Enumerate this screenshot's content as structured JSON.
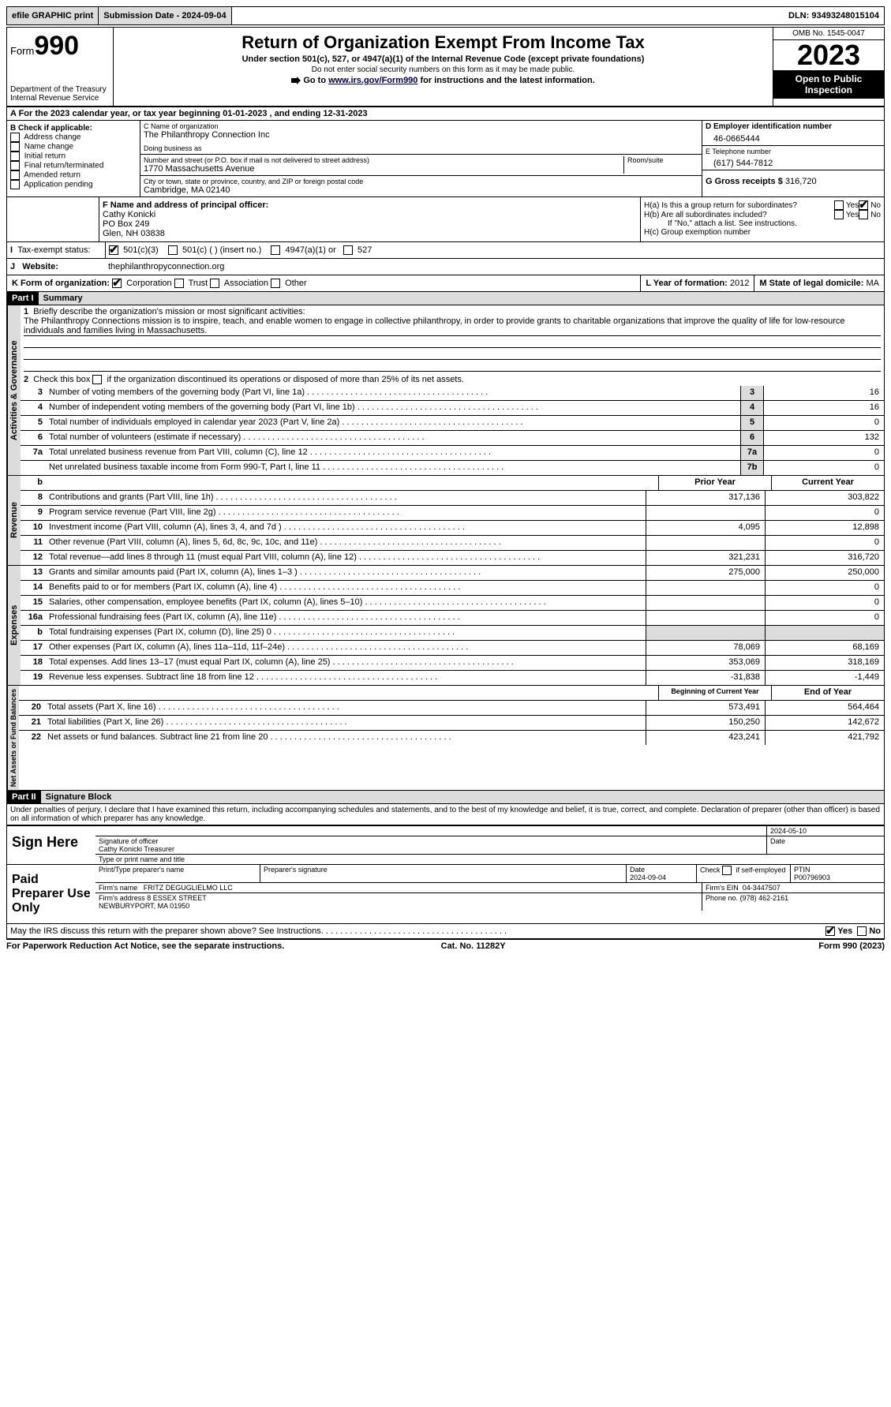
{
  "topbar": {
    "efile": "efile GRAPHIC print",
    "submission": "Submission Date - 2024-09-04",
    "dln": "DLN: 93493248015104"
  },
  "header": {
    "form_prefix": "Form",
    "form_num": "990",
    "title": "Return of Organization Exempt From Income Tax",
    "subtitle": "Under section 501(c), 527, or 4947(a)(1) of the Internal Revenue Code (except private foundations)",
    "warn": "Do not enter social security numbers on this form as it may be made public.",
    "goto_pre": "Go to ",
    "goto_link": "www.irs.gov/Form990",
    "goto_post": " for instructions and the latest information.",
    "dept": "Department of the Treasury\nInternal Revenue Service",
    "omb": "OMB No. 1545-0047",
    "year": "2023",
    "inspect": "Open to Public Inspection"
  },
  "row_a": "A For the 2023 calendar year, or tax year beginning 01-01-2023   , and ending 12-31-2023",
  "box_b": {
    "label": "B Check if applicable:",
    "opts": [
      "Address change",
      "Name change",
      "Initial return",
      "Final return/terminated",
      "Amended return",
      "Application pending"
    ]
  },
  "box_c": {
    "name_lbl": "C Name of organization",
    "name": "The Philanthropy Connection Inc",
    "dba_lbl": "Doing business as",
    "dba": "",
    "street_lbl": "Number and street (or P.O. box if mail is not delivered to street address)",
    "street": "1770 Massachusetts Avenue",
    "room_lbl": "Room/suite",
    "city_lbl": "City or town, state or province, country, and ZIP or foreign postal code",
    "city": "Cambridge, MA  02140"
  },
  "box_d": {
    "ein_lbl": "D Employer identification number",
    "ein": "46-0665444",
    "phone_lbl": "E Telephone number",
    "phone": "(617) 544-7812",
    "gross_lbl": "G Gross receipts $",
    "gross": "316,720"
  },
  "box_f": {
    "lbl": "F  Name and address of principal officer:",
    "name": "Cathy Konicki",
    "addr1": "PO Box 249",
    "addr2": "Glen, NH  03838"
  },
  "box_h": {
    "ha": "H(a)  Is this a group return for subordinates?",
    "hb": "H(b)  Are all subordinates included?",
    "hb_note": "If \"No,\" attach a list. See instructions.",
    "hc": "H(c)  Group exemption number ",
    "yes": "Yes",
    "no": "No"
  },
  "row_i": {
    "lbl": "Tax-exempt status:",
    "opt1": "501(c)(3)",
    "opt2": "501(c) (  ) (insert no.)",
    "opt3": "4947(a)(1) or",
    "opt4": "527"
  },
  "row_j": {
    "lbl": "Website:",
    "val": "thephilanthropyconnection.org"
  },
  "row_k": {
    "lbl": "K Form of organization:",
    "o1": "Corporation",
    "o2": "Trust",
    "o3": "Association",
    "o4": "Other"
  },
  "row_l": {
    "lbl": "L Year of formation:",
    "val": "2012"
  },
  "row_m": {
    "lbl": "M State of legal domicile:",
    "val": "MA"
  },
  "part1": {
    "hdr": "Part I",
    "title": "Summary",
    "q1_lbl": "Briefly describe the organization's mission or most significant activities:",
    "q1_txt": "The Philanthropy Connections mission is to inspire, teach, and enable women to engage in collective philanthropy, in order to provide grants to charitable organizations that improve the quality of life for low-resource individuals and families living in Massachusetts.",
    "q2": "Check this box      if the organization discontinued its operations or disposed of more than 25% of its net assets.",
    "tabs": {
      "ag": "Activities & Governance",
      "rev": "Revenue",
      "exp": "Expenses",
      "na": "Net Assets or Fund Balances"
    },
    "lines_ag": [
      {
        "n": "3",
        "d": "Number of voting members of the governing body (Part VI, line 1a)",
        "b": "3",
        "v": "16"
      },
      {
        "n": "4",
        "d": "Number of independent voting members of the governing body (Part VI, line 1b)",
        "b": "4",
        "v": "16"
      },
      {
        "n": "5",
        "d": "Total number of individuals employed in calendar year 2023 (Part V, line 2a)",
        "b": "5",
        "v": "0"
      },
      {
        "n": "6",
        "d": "Total number of volunteers (estimate if necessary)",
        "b": "6",
        "v": "132"
      },
      {
        "n": "7a",
        "d": "Total unrelated business revenue from Part VIII, column (C), line 12",
        "b": "7a",
        "v": "0"
      },
      {
        "n": "",
        "d": "Net unrelated business taxable income from Form 990-T, Part I, line 11",
        "b": "7b",
        "v": "0"
      }
    ],
    "col_prior": "Prior Year",
    "col_curr": "Current Year",
    "lines_rev": [
      {
        "n": "8",
        "d": "Contributions and grants (Part VIII, line 1h)",
        "p": "317,136",
        "c": "303,822"
      },
      {
        "n": "9",
        "d": "Program service revenue (Part VIII, line 2g)",
        "p": "",
        "c": "0"
      },
      {
        "n": "10",
        "d": "Investment income (Part VIII, column (A), lines 3, 4, and 7d )",
        "p": "4,095",
        "c": "12,898"
      },
      {
        "n": "11",
        "d": "Other revenue (Part VIII, column (A), lines 5, 6d, 8c, 9c, 10c, and 11e)",
        "p": "",
        "c": "0"
      },
      {
        "n": "12",
        "d": "Total revenue—add lines 8 through 11 (must equal Part VIII, column (A), line 12)",
        "p": "321,231",
        "c": "316,720"
      }
    ],
    "lines_exp": [
      {
        "n": "13",
        "d": "Grants and similar amounts paid (Part IX, column (A), lines 1–3 )",
        "p": "275,000",
        "c": "250,000"
      },
      {
        "n": "14",
        "d": "Benefits paid to or for members (Part IX, column (A), line 4)",
        "p": "",
        "c": "0"
      },
      {
        "n": "15",
        "d": "Salaries, other compensation, employee benefits (Part IX, column (A), lines 5–10)",
        "p": "",
        "c": "0"
      },
      {
        "n": "16a",
        "d": "Professional fundraising fees (Part IX, column (A), line 11e)",
        "p": "",
        "c": "0"
      },
      {
        "n": "b",
        "d": "Total fundraising expenses (Part IX, column (D), line 25) 0",
        "p": "shade",
        "c": "shade"
      },
      {
        "n": "17",
        "d": "Other expenses (Part IX, column (A), lines 11a–11d, 11f–24e)",
        "p": "78,069",
        "c": "68,169"
      },
      {
        "n": "18",
        "d": "Total expenses. Add lines 13–17 (must equal Part IX, column (A), line 25)",
        "p": "353,069",
        "c": "318,169"
      },
      {
        "n": "19",
        "d": "Revenue less expenses. Subtract line 18 from line 12",
        "p": "-31,838",
        "c": "-1,449"
      }
    ],
    "col_beg": "Beginning of Current Year",
    "col_end": "End of Year",
    "lines_na": [
      {
        "n": "20",
        "d": "Total assets (Part X, line 16)",
        "p": "573,491",
        "c": "564,464"
      },
      {
        "n": "21",
        "d": "Total liabilities (Part X, line 26)",
        "p": "150,250",
        "c": "142,672"
      },
      {
        "n": "22",
        "d": "Net assets or fund balances. Subtract line 21 from line 20",
        "p": "423,241",
        "c": "421,792"
      }
    ]
  },
  "part2": {
    "hdr": "Part II",
    "title": "Signature Block",
    "decl": "Under penalties of perjury, I declare that I have examined this return, including accompanying schedules and statements, and to the best of my knowledge and belief, it is true, correct, and complete. Declaration of preparer (other than officer) is based on all information of which preparer has any knowledge.",
    "sign_here": "Sign Here",
    "sig_officer_lbl": "Signature of officer",
    "sig_date": "2024-05-10",
    "date_lbl": "Date",
    "officer": "Cathy Konicki  Treasurer",
    "type_lbl": "Type or print name and title",
    "paid": "Paid Preparer Use Only",
    "prep_name_lbl": "Print/Type preparer's name",
    "prep_sig_lbl": "Preparer's signature",
    "prep_date": "2024-09-04",
    "self_emp": "Check       if self-employed",
    "ptin_lbl": "PTIN",
    "ptin": "P00796903",
    "firm_name_lbl": "Firm's name",
    "firm_name": "FRITZ DEGUGLIELMO LLC",
    "firm_ein_lbl": "Firm's EIN",
    "firm_ein": "04-3447507",
    "firm_addr_lbl": "Firm's address",
    "firm_addr": "8 ESSEX STREET\nNEWBURYPORT, MA  01950",
    "firm_phone_lbl": "Phone no.",
    "firm_phone": "(978) 462-2161",
    "discuss": "May the IRS discuss this return with the preparer shown above? See Instructions."
  },
  "footer": {
    "pra": "For Paperwork Reduction Act Notice, see the separate instructions.",
    "cat": "Cat. No. 11282Y",
    "form": "Form 990 (2023)"
  },
  "colors": {
    "header_bg": "#000000",
    "shade": "#dcdcdc"
  }
}
